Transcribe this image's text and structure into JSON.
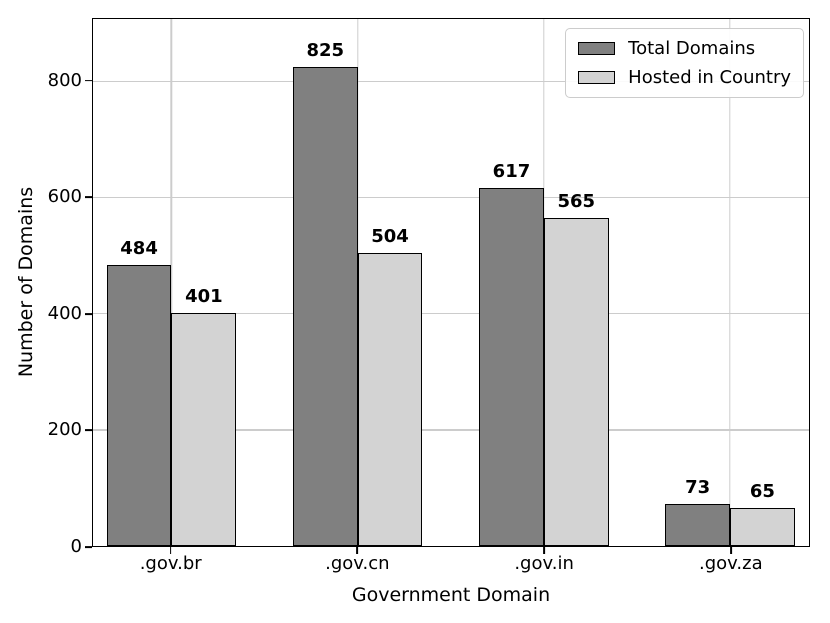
{
  "chart_data": {
    "type": "bar",
    "title": "",
    "xlabel": "Government Domain",
    "ylabel": "Number of Domains",
    "categories": [
      ".gov.br",
      ".gov.cn",
      ".gov.in",
      ".gov.za"
    ],
    "series": [
      {
        "name": "Total Domains",
        "color": "#808080",
        "values": [
          484,
          825,
          617,
          73
        ]
      },
      {
        "name": "Hosted in Country",
        "color": "#d3d3d3",
        "values": [
          401,
          504,
          565,
          65
        ]
      }
    ],
    "bar_edge_color": "#000000",
    "value_labels_bold": true,
    "ylim": [
      0,
      907.5
    ],
    "yticks": [
      0,
      200,
      400,
      600,
      800
    ],
    "grid": true,
    "grid_color": "#cccccc",
    "legend_position": "upper right",
    "legend_border_color": "#cccccc"
  }
}
